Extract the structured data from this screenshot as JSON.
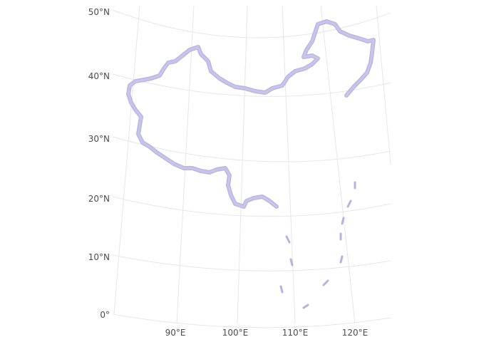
{
  "map": {
    "latitude_labels": [
      "50°N",
      "40°N",
      "30°N",
      "20°N",
      "10°N",
      "0°"
    ],
    "longitude_labels": [
      "90°E",
      "100°E",
      "110°E",
      "120°E"
    ],
    "colors": {
      "background": "#ffffff",
      "grid": "#e6e6e6",
      "border": "#b7b3df",
      "label": "#4d4d4d"
    }
  }
}
